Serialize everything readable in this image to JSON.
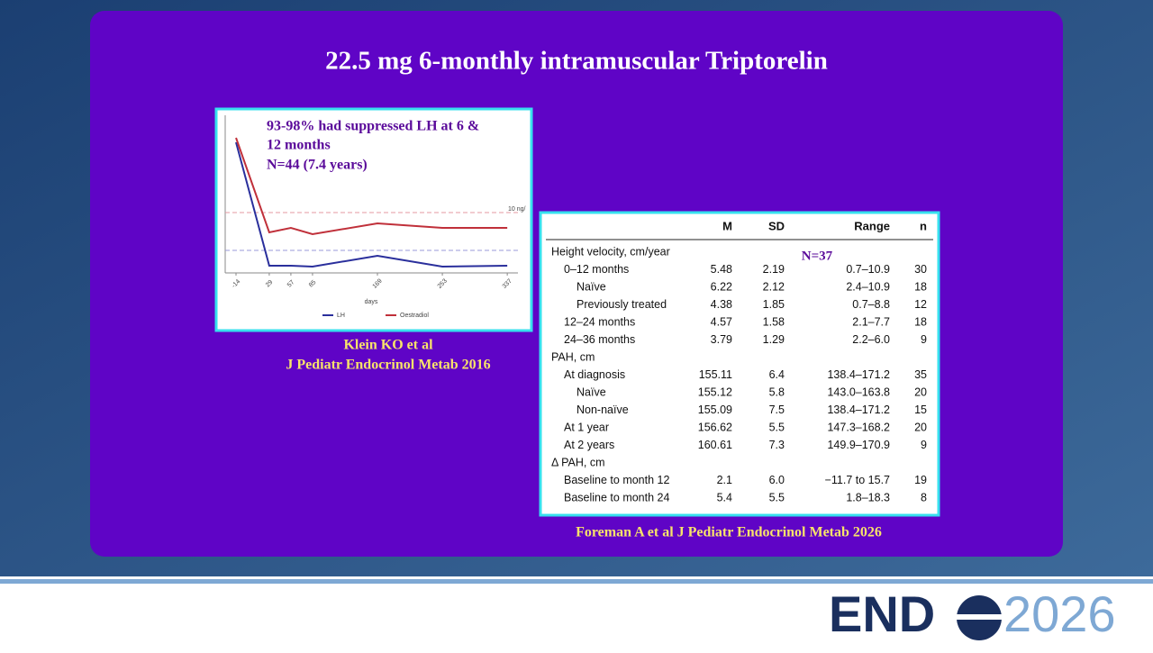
{
  "slide": {
    "title": "22.5 mg 6-monthly intramuscular Triptorelin"
  },
  "chart_data": {
    "type": "line",
    "xlabel": "days",
    "x": [
      -14,
      29,
      57,
      85,
      169,
      253,
      337
    ],
    "series": [
      {
        "name": "LH",
        "color": "#2a2f9c",
        "values": [
          29,
          1.6,
          1.6,
          1.4,
          3.8,
          1.4,
          1.6
        ]
      },
      {
        "name": "Oestradiol",
        "color": "#c0303a",
        "values": [
          30,
          9,
          10,
          8.6,
          11,
          10,
          10
        ]
      }
    ],
    "xlim": [
      -28,
      345
    ],
    "xticks": [
      -14,
      29,
      57,
      85,
      169,
      253,
      337
    ],
    "ylim": [
      0,
      35
    ],
    "annotation": "10 ng/"
  },
  "chart_note": [
    "93-98% had suppressed LH at 6 &",
    "12 months",
    "N=44 (7.4 years)"
  ],
  "chart_caption": [
    "Klein KO et al",
    "J Pediatr Endocrinol Metab 2016"
  ],
  "table": {
    "header": [
      "M",
      "SD",
      "Range",
      "n"
    ],
    "note": "N=37",
    "rows": [
      [
        "Height velocity, cm/year"
      ],
      [
        "0–12 months",
        "5.48",
        "2.19",
        "0.7–10.9",
        "30"
      ],
      [
        "Naïve",
        "6.22",
        "2.12",
        "2.4–10.9",
        "18"
      ],
      [
        "Previously treated",
        "4.38",
        "1.85",
        "0.7–8.8",
        "12"
      ],
      [
        "12–24 months",
        "4.57",
        "1.58",
        "2.1–7.7",
        "18"
      ],
      [
        "24–36 months",
        "3.79",
        "1.29",
        "2.2–6.0",
        "9"
      ],
      [
        "PAH, cm"
      ],
      [
        "At diagnosis",
        "155.11",
        "6.4",
        "138.4–171.2",
        "35"
      ],
      [
        "Naïve",
        "155.12",
        "5.8",
        "143.0–163.8",
        "20"
      ],
      [
        "Non-naïve",
        "155.09",
        "7.5",
        "138.4–171.2",
        "15"
      ],
      [
        "At 1 year",
        "156.62",
        "5.5",
        "147.3–168.2",
        "20"
      ],
      [
        "At 2 years",
        "160.61",
        "7.3",
        "149.9–170.9",
        "9"
      ],
      [
        "Δ PAH, cm"
      ],
      [
        "Baseline to month 12",
        "2.1",
        "6.0",
        "−11.7 to 15.7",
        "19"
      ],
      [
        "Baseline to month 24",
        "5.4",
        "5.5",
        "1.8–18.3",
        "8"
      ]
    ]
  },
  "table_caption": "Foreman A et al J Pediatr Endocrinol Metab 2026",
  "logo": {
    "left": "END",
    "right": "2026"
  }
}
